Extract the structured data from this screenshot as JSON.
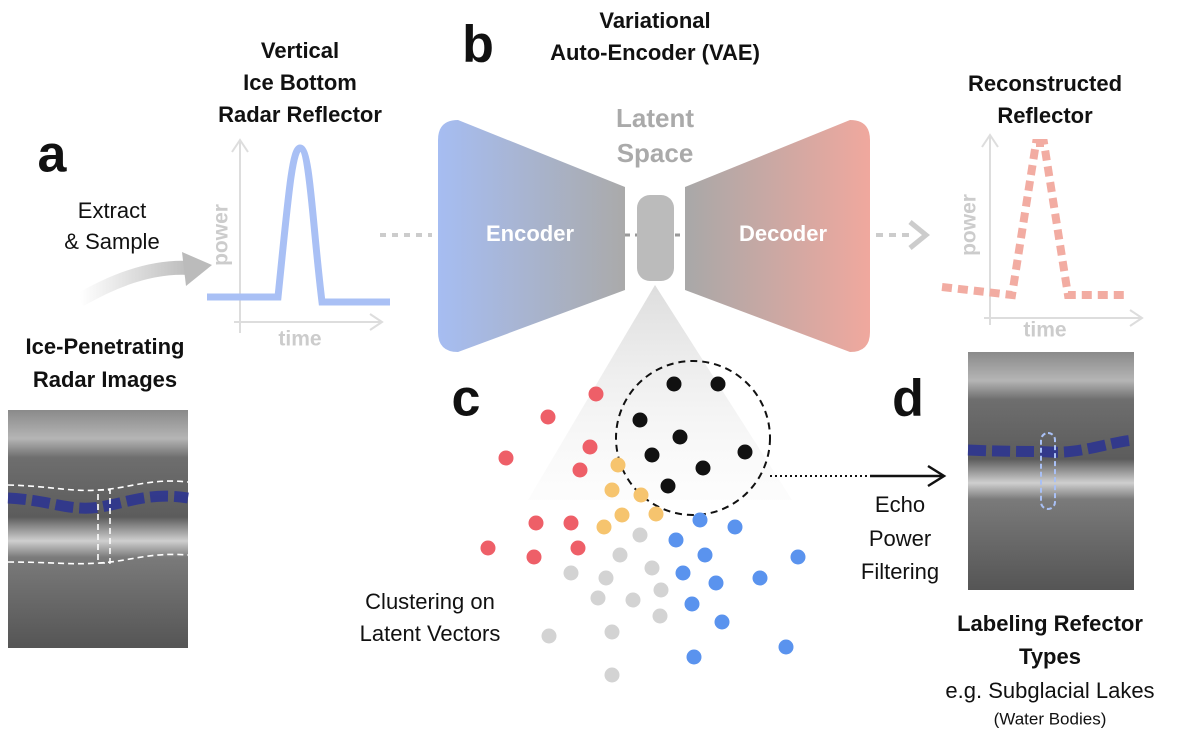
{
  "panel_labels": [
    "a",
    "b",
    "c",
    "d"
  ],
  "input": {
    "title": [
      "Ice-Penetrating",
      "Radar Images"
    ],
    "action": [
      "Extract",
      "& Sample"
    ]
  },
  "reflector": {
    "title": [
      "Vertical",
      "Ice Bottom",
      "Radar Reflector"
    ],
    "y_label": "power",
    "x_label": "time"
  },
  "vae": {
    "title": [
      "Variational",
      "Auto-Encoder (VAE)"
    ],
    "encoder": "Encoder",
    "latent": [
      "Latent",
      "Space"
    ],
    "decoder": "Decoder"
  },
  "reconstruction": {
    "title": [
      "Reconstructed",
      "Reflector"
    ],
    "y_label": "power",
    "x_label": "time"
  },
  "clustering": {
    "caption": [
      "Clustering on",
      "Latent Vectors"
    ]
  },
  "filtering": {
    "caption": [
      "Echo",
      "Power",
      "Filtering"
    ]
  },
  "output": {
    "title": [
      "Labeling Refector",
      "Types"
    ],
    "example": "e.g. Subglacial Lakes",
    "note": "(Water Bodies)"
  }
}
